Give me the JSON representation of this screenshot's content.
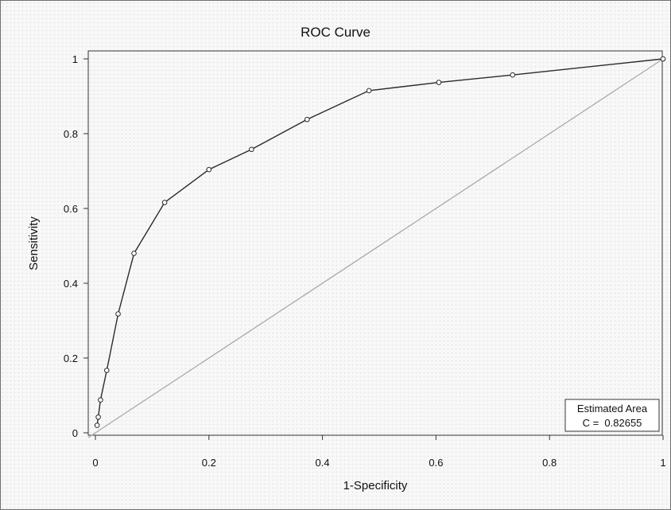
{
  "chart_data": {
    "type": "line",
    "title": "ROC Curve",
    "xlabel": "1-Specificity",
    "ylabel": "Sensitivity",
    "xlim": [
      0,
      1
    ],
    "ylim": [
      0,
      1
    ],
    "x_ticks": [
      0,
      0.2,
      0.4,
      0.6,
      0.8,
      1
    ],
    "y_ticks": [
      0,
      0.2,
      0.4,
      0.6,
      0.8,
      1
    ],
    "x_tick_labels": [
      "0",
      "0.2",
      "0.4",
      "0.6",
      "0.8",
      "1"
    ],
    "y_tick_labels": [
      "0",
      "0.2",
      "0.4",
      "0.6",
      "0.8",
      "1"
    ],
    "grid": false,
    "series": [
      {
        "x": [
          0.003,
          0.005,
          0.009,
          0.02,
          0.04,
          0.068,
          0.122,
          0.2,
          0.275,
          0.373,
          0.482,
          0.605,
          0.735,
          1.0
        ],
        "y": [
          0.02,
          0.042,
          0.088,
          0.167,
          0.318,
          0.48,
          0.616,
          0.704,
          0.758,
          0.838,
          0.915,
          0.937,
          0.957,
          1.0
        ],
        "color": "#2b2b2b"
      }
    ],
    "reference_line": {
      "x": [
        0,
        1
      ],
      "y": [
        0,
        1
      ],
      "color": "#aaaaaa"
    },
    "legend": {
      "position": "bottom-right",
      "line1": "Estimated Area",
      "line2": "C =  0.82655"
    }
  }
}
